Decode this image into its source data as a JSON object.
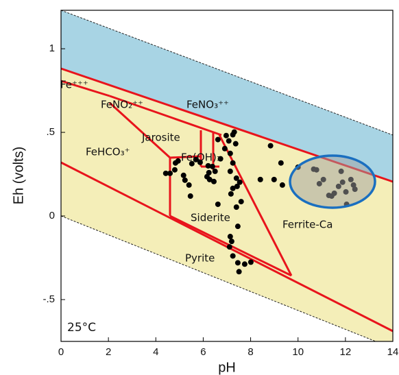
{
  "chart_data": {
    "type": "scatter",
    "x_label": "pH",
    "y_label": "Eh (volts)",
    "annotations": [
      "Fe⁺⁺⁺",
      "FeNO₂⁺⁺",
      "FeNO₃⁺⁺",
      "Jarosite",
      "FeHCO₃⁺",
      "Fe(OH)₃",
      "Siderite",
      "Pyrite",
      "Ferrite-Ca",
      "25°C"
    ],
    "xlim": [
      0,
      14
    ],
    "xticks": [
      0,
      2,
      4,
      6,
      8,
      10,
      12,
      14
    ],
    "ylim": [
      -0.75,
      1.23
    ],
    "yticks": [
      {
        "value": -0.5,
        "label": "-.5"
      },
      0,
      {
        "value": 0.5,
        "label": ".5"
      },
      1
    ],
    "color": "#000000",
    "x": [
      4.42,
      4.6,
      4.8,
      4.83,
      4.94,
      5.17,
      5.23,
      5.4,
      5.46,
      5.52,
      5.69,
      5.87,
      6.16,
      6.24,
      6.27,
      6.21,
      6.39,
      6.45,
      6.5,
      6.62,
      6.73,
      6.91,
      6.97,
      7.08,
      7.14,
      7.25,
      7.31,
      7.37,
      7.25,
      7.4,
      7.14,
      7.17,
      7.25,
      7.43,
      7.54,
      7.6,
      7.4,
      7.46,
      7.14,
      7.2,
      7.11,
      7.25,
      7.46,
      7.75,
      8.01,
      7.51,
      6.62,
      8.41,
      8.84,
      8.99,
      9.28,
      9.34,
      10.0,
      10.66,
      10.78,
      10.9,
      11.07,
      11.3,
      11.42,
      11.53,
      11.71,
      11.82,
      11.88,
      12.02,
      12.05,
      12.23,
      12.34,
      12.4
    ],
    "y": [
      0.255,
      0.255,
      0.276,
      0.317,
      0.329,
      0.243,
      0.214,
      0.185,
      0.119,
      0.313,
      0.337,
      0.321,
      0.235,
      0.259,
      0.218,
      0.3,
      0.296,
      0.206,
      0.267,
      0.457,
      0.342,
      0.403,
      0.481,
      0.449,
      0.374,
      0.486,
      0.502,
      0.432,
      0.317,
      0.226,
      0.267,
      0.132,
      0.165,
      0.177,
      0.202,
      0.086,
      0.053,
      -0.062,
      -0.123,
      -0.152,
      -0.185,
      -0.239,
      -0.28,
      -0.288,
      -0.276,
      -0.333,
      0.07,
      0.218,
      0.42,
      0.218,
      0.317,
      0.185,
      0.292,
      0.28,
      0.276,
      0.193,
      0.218,
      0.123,
      0.119,
      0.136,
      0.177,
      0.267,
      0.202,
      0.144,
      0.07,
      0.218,
      0.185,
      0.16
    ]
  }
}
